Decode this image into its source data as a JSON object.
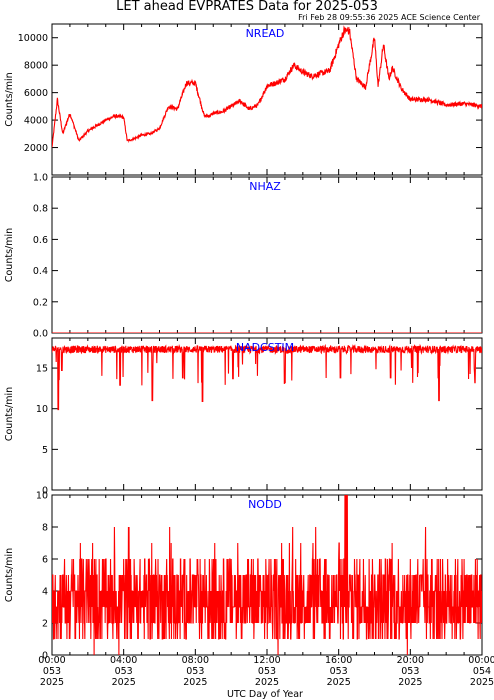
{
  "header": {
    "title": "LET ahead EVPRATES Data for 2025-053",
    "stamp": "Fri Feb 28 09:55:36 2025 ACE Science Center"
  },
  "colors": {
    "series": "#ff0000",
    "label": "#0000ff",
    "axes": "#000000"
  },
  "xaxis": {
    "label": "UTC Day of Year",
    "ticks": [
      {
        "hour": 0,
        "time": "00:00",
        "doy": "053",
        "year": "2025"
      },
      {
        "hour": 4,
        "time": "04:00",
        "doy": "053",
        "year": "2025"
      },
      {
        "hour": 8,
        "time": "08:00",
        "doy": "053",
        "year": "2025"
      },
      {
        "hour": 12,
        "time": "12:00",
        "doy": "053",
        "year": "2025"
      },
      {
        "hour": 16,
        "time": "16:00",
        "doy": "053",
        "year": "2025"
      },
      {
        "hour": 20,
        "time": "20:00",
        "doy": "053",
        "year": "2025"
      },
      {
        "hour": 24,
        "time": "00:00",
        "doy": "054",
        "year": "2025"
      }
    ]
  },
  "chart_data": [
    {
      "type": "line",
      "name": "NREAD",
      "ylabel": "Counts/min",
      "ylim": [
        0,
        11000
      ],
      "yticks": [
        2000,
        4000,
        6000,
        8000,
        10000
      ],
      "x": [
        0,
        0.3,
        0.6,
        1,
        1.5,
        2,
        2.5,
        3,
        3.5,
        4,
        4.2,
        4.5,
        5,
        5.5,
        6,
        6.5,
        7,
        7.5,
        8,
        8.5,
        8.8,
        9,
        9.5,
        10,
        10.5,
        11,
        11.5,
        12,
        12.5,
        13,
        13.5,
        14,
        14.5,
        15,
        15.5,
        16,
        16.3,
        16.6,
        17,
        17.5,
        18,
        18.2,
        18.5,
        18.8,
        19,
        19.5,
        20,
        21,
        22,
        23,
        24
      ],
      "y": [
        2000,
        5500,
        3000,
        4500,
        2500,
        3200,
        3600,
        4000,
        4300,
        4200,
        2500,
        2600,
        2900,
        3000,
        3400,
        5000,
        4800,
        6700,
        6700,
        4300,
        4300,
        4500,
        4600,
        5000,
        5400,
        4800,
        5100,
        6500,
        6700,
        7000,
        8000,
        7500,
        7200,
        7400,
        7600,
        9500,
        10500,
        10500,
        7000,
        6400,
        10000,
        6500,
        9500,
        7000,
        7800,
        6300,
        5500,
        5500,
        5100,
        5200,
        5000
      ]
    },
    {
      "type": "line",
      "name": "NHAZ",
      "ylabel": "Counts/min",
      "ylim": [
        0,
        1
      ],
      "yticks": [
        0.0,
        0.2,
        0.4,
        0.6,
        0.8,
        1.0
      ],
      "x": [
        0,
        24
      ],
      "y": [
        0,
        0
      ]
    },
    {
      "type": "line",
      "name": "NADCSTIM",
      "ylabel": "Counts/min",
      "ylim": [
        0,
        18.7
      ],
      "yticks": [
        0,
        5,
        10,
        15
      ],
      "x": [
        0,
        0.35,
        0.45,
        0.55,
        3.8,
        5.6,
        7.3,
        8.4,
        10.1,
        13.0,
        16.1,
        18.9,
        21.6,
        23.6,
        24
      ],
      "y": [
        17.3,
        9.9,
        17.3,
        14.7,
        12.9,
        11.0,
        13.8,
        10.9,
        13.7,
        13.2,
        13.8,
        13.8,
        11.0,
        13.2,
        17.3
      ]
    },
    {
      "type": "line",
      "name": "NODD",
      "ylabel": "Counts/min",
      "ylim": [
        0,
        10
      ],
      "yticks": [
        0,
        2,
        4,
        6,
        8,
        10
      ],
      "x": [
        0,
        2,
        4,
        6,
        8,
        10,
        12,
        14,
        16,
        16.4,
        16.8,
        18,
        20,
        22,
        24
      ],
      "y": [
        3,
        3,
        3,
        3,
        3,
        3,
        3,
        3,
        3,
        10,
        3,
        3,
        3,
        3,
        3
      ],
      "range_low": 0,
      "range_high": 8
    }
  ]
}
